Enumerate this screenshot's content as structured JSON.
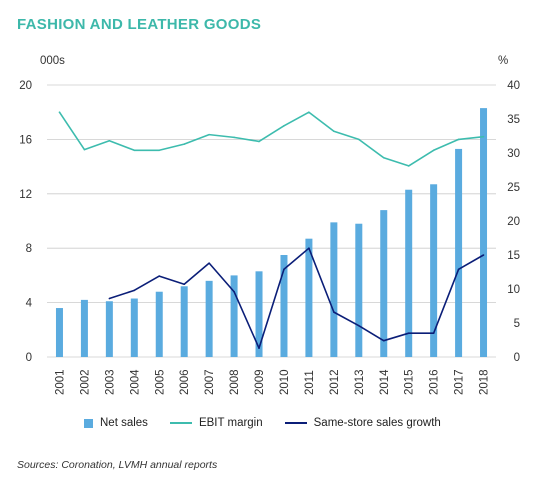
{
  "title": "FASHION AND LEATHER GOODS",
  "source": "Sources: Coronation, LVMH annual reports",
  "colors": {
    "title": "#3db8aa",
    "bars": "#5aabdf",
    "ebit": "#3dbcae",
    "sss": "#0b1e78",
    "grid": "#cccccc"
  },
  "chart_data": {
    "type": "bar+line",
    "title": "FASHION AND LEATHER GOODS",
    "y_left": {
      "label": "000s",
      "min": 0,
      "max": 20,
      "ticks": [
        "0",
        "4",
        "8",
        "12",
        "16",
        "20"
      ]
    },
    "y_right": {
      "label": "%",
      "min": 0,
      "max": 40,
      "ticks": [
        "0",
        "5",
        "10",
        "15",
        "20",
        "25",
        "30",
        "35",
        "40"
      ]
    },
    "categories": [
      "2001",
      "2002",
      "2003",
      "2004",
      "2005",
      "2006",
      "2007",
      "2008",
      "2009",
      "2010",
      "2011",
      "2012",
      "2013",
      "2014",
      "2015",
      "2016",
      "2017",
      "2018"
    ],
    "series": [
      {
        "name": "Net sales",
        "type": "bar",
        "axis": "left",
        "values": [
          3.6,
          4.2,
          4.1,
          4.3,
          4.8,
          5.2,
          5.6,
          6.0,
          6.3,
          7.5,
          8.7,
          9.9,
          9.8,
          10.8,
          12.3,
          12.7,
          15.3,
          18.3
        ]
      },
      {
        "name": "EBIT margin",
        "type": "line",
        "axis": "right",
        "values": [
          36,
          30.5,
          31.8,
          30.4,
          30.4,
          31.3,
          32.7,
          32.3,
          31.7,
          34.0,
          36.0,
          33.2,
          32.0,
          29.3,
          28.1,
          30.4,
          32.0,
          32.4
        ]
      },
      {
        "name": "Same-store sales growth",
        "type": "line",
        "axis": "right",
        "values": [
          null,
          null,
          8.6,
          9.8,
          11.9,
          10.7,
          13.8,
          9.6,
          1.3,
          12.9,
          16.0,
          6.6,
          4.6,
          2.4,
          3.5,
          3.5,
          12.9,
          15.0
        ]
      }
    ]
  }
}
